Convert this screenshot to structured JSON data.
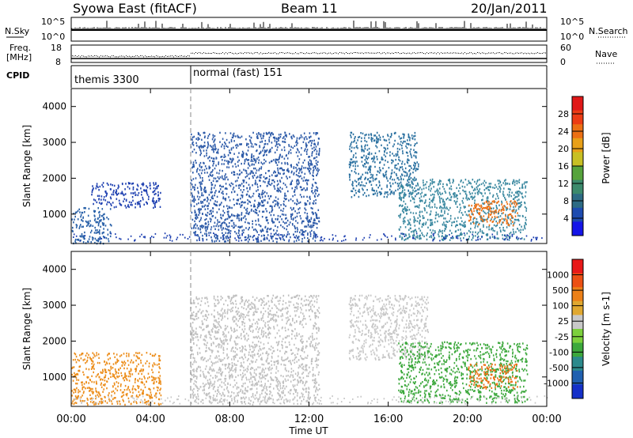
{
  "header": {
    "title": "Syowa East (fitACF)",
    "beam": "Beam 11",
    "date": "20/Jan/2011"
  },
  "nsky_panel": {
    "left_label": "N.Sky",
    "right_label": "N.Search",
    "left_ticks": [
      "10^5",
      "10^0"
    ],
    "right_ticks": [
      "10^5",
      "10^0"
    ]
  },
  "freq_panel": {
    "left_label_1": "Freq.",
    "left_label_2": "[MHz]",
    "right_label": "Nave",
    "left_ticks": [
      "18",
      "8"
    ],
    "right_ticks": [
      "60",
      "0"
    ]
  },
  "cpid_panel": {
    "label": "CPID",
    "segments": [
      {
        "name": "themis 3300",
        "start_h": 0,
        "end_h": 6
      },
      {
        "name": "normal (fast) 151",
        "start_h": 6,
        "end_h": 24
      }
    ]
  },
  "x_axis": {
    "label": "Time UT",
    "ticks": [
      "00:00",
      "04:00",
      "08:00",
      "12:00",
      "16:00",
      "20:00",
      "00:00"
    ],
    "tick_hours": [
      0,
      4,
      8,
      12,
      16,
      20,
      24
    ]
  },
  "chart_data": [
    {
      "type": "heatmap",
      "name": "power",
      "ylabel": "Slant Range [km]",
      "ylim": [
        180,
        4500
      ],
      "y_ticks": [
        1000,
        2000,
        3000,
        4000
      ],
      "xlim_hours": [
        0,
        24
      ],
      "colorbar": {
        "label": "Power [dB]",
        "ticks": [
          "4",
          "8",
          "12",
          "16",
          "20",
          "24",
          "28"
        ],
        "colors": [
          "#1515e8",
          "#1d4bb0",
          "#2d6b84",
          "#3c8a6c",
          "#56a33c",
          "#c8c024",
          "#e8a018",
          "#ec7014",
          "#ec3c14",
          "#e01818"
        ]
      },
      "scatter_regions": [
        {
          "t0": 0.0,
          "t1": 2.0,
          "r0": 200,
          "r1": 1200,
          "color": "#2860a8"
        },
        {
          "t0": 1.0,
          "t1": 4.5,
          "r0": 1200,
          "r1": 1900,
          "color": "#1d3fb0"
        },
        {
          "t0": 6.0,
          "t1": 12.5,
          "r0": 250,
          "r1": 3300,
          "color": "#2c5aa8"
        },
        {
          "t0": 14.0,
          "t1": 17.5,
          "r0": 1500,
          "r1": 3300,
          "color": "#2a70a0"
        },
        {
          "t0": 16.5,
          "t1": 23.0,
          "r0": 300,
          "r1": 2000,
          "color": "#3a88a0"
        },
        {
          "t0": 20.0,
          "t1": 22.5,
          "r0": 700,
          "r1": 1400,
          "color": "#ec7014"
        }
      ]
    },
    {
      "type": "heatmap",
      "name": "velocity",
      "ylabel": "Slant Range [km]",
      "ylim": [
        180,
        4500
      ],
      "y_ticks": [
        1000,
        2000,
        3000,
        4000
      ],
      "xlim_hours": [
        0,
        24
      ],
      "colorbar": {
        "label": "Velocity [m s-1]",
        "ticks": [
          "1000",
          "500",
          "100",
          "25",
          "-25",
          "-100",
          "-500",
          "-1000"
        ],
        "colors": [
          "#1530c8",
          "#2060b0",
          "#2c8a8c",
          "#3ca83c",
          "#7cd03c",
          "#c8c8c8",
          "#e0a830",
          "#ec8018",
          "#ec5014",
          "#e81818"
        ]
      },
      "scatter_regions": [
        {
          "t0": 0.0,
          "t1": 4.5,
          "r0": 250,
          "r1": 1700,
          "color": "#ec8c18"
        },
        {
          "t0": 6.0,
          "t1": 12.5,
          "r0": 250,
          "r1": 3300,
          "color": "#c0c0c0"
        },
        {
          "t0": 14.0,
          "t1": 18.0,
          "r0": 1500,
          "r1": 3300,
          "color": "#c8c8c8"
        },
        {
          "t0": 16.5,
          "t1": 23.0,
          "r0": 300,
          "r1": 2000,
          "color": "#3ca83c"
        },
        {
          "t0": 20.0,
          "t1": 22.5,
          "r0": 700,
          "r1": 1400,
          "color": "#ec7014"
        }
      ]
    }
  ]
}
